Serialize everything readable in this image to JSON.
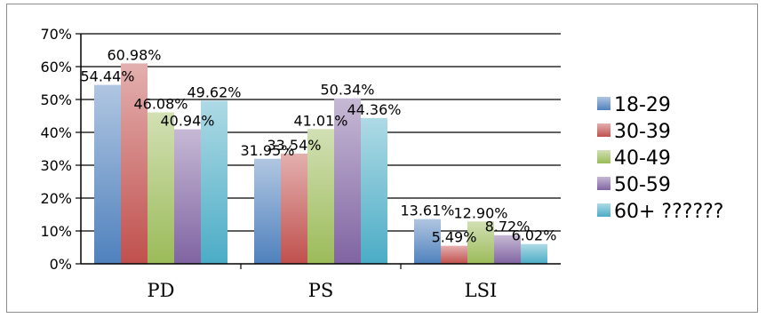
{
  "chart_data": {
    "type": "bar",
    "categories": [
      "PD",
      "PS",
      "LSI"
    ],
    "series": [
      {
        "name": "18-29",
        "values": [
          54.44,
          31.95,
          13.61
        ],
        "labels": [
          "54.44%",
          "31.95%",
          "13.61%"
        ],
        "color": "#4f81bd"
      },
      {
        "name": "30-39",
        "values": [
          60.98,
          33.54,
          5.49
        ],
        "labels": [
          "60.98%",
          "33.54%",
          "5.49%"
        ],
        "color": "#c0504d"
      },
      {
        "name": "40-49",
        "values": [
          46.08,
          41.01,
          12.9
        ],
        "labels": [
          "46.08%",
          "41.01%",
          "12.90%"
        ],
        "color": "#9bbb59"
      },
      {
        "name": "50-59",
        "values": [
          40.94,
          50.34,
          8.72
        ],
        "labels": [
          "40.94%",
          "50.34%",
          "8.72%"
        ],
        "color": "#8064a2"
      },
      {
        "name": "60+ ??????",
        "values": [
          49.62,
          44.36,
          6.02
        ],
        "labels": [
          "49.62%",
          "44.36%",
          "6.02%"
        ],
        "color": "#4bacc6"
      }
    ],
    "ylim": [
      0,
      70
    ],
    "yticks": [
      "0%",
      "10%",
      "20%",
      "30%",
      "40%",
      "50%",
      "60%",
      "70%"
    ],
    "grid": true,
    "legend_position": "right"
  }
}
